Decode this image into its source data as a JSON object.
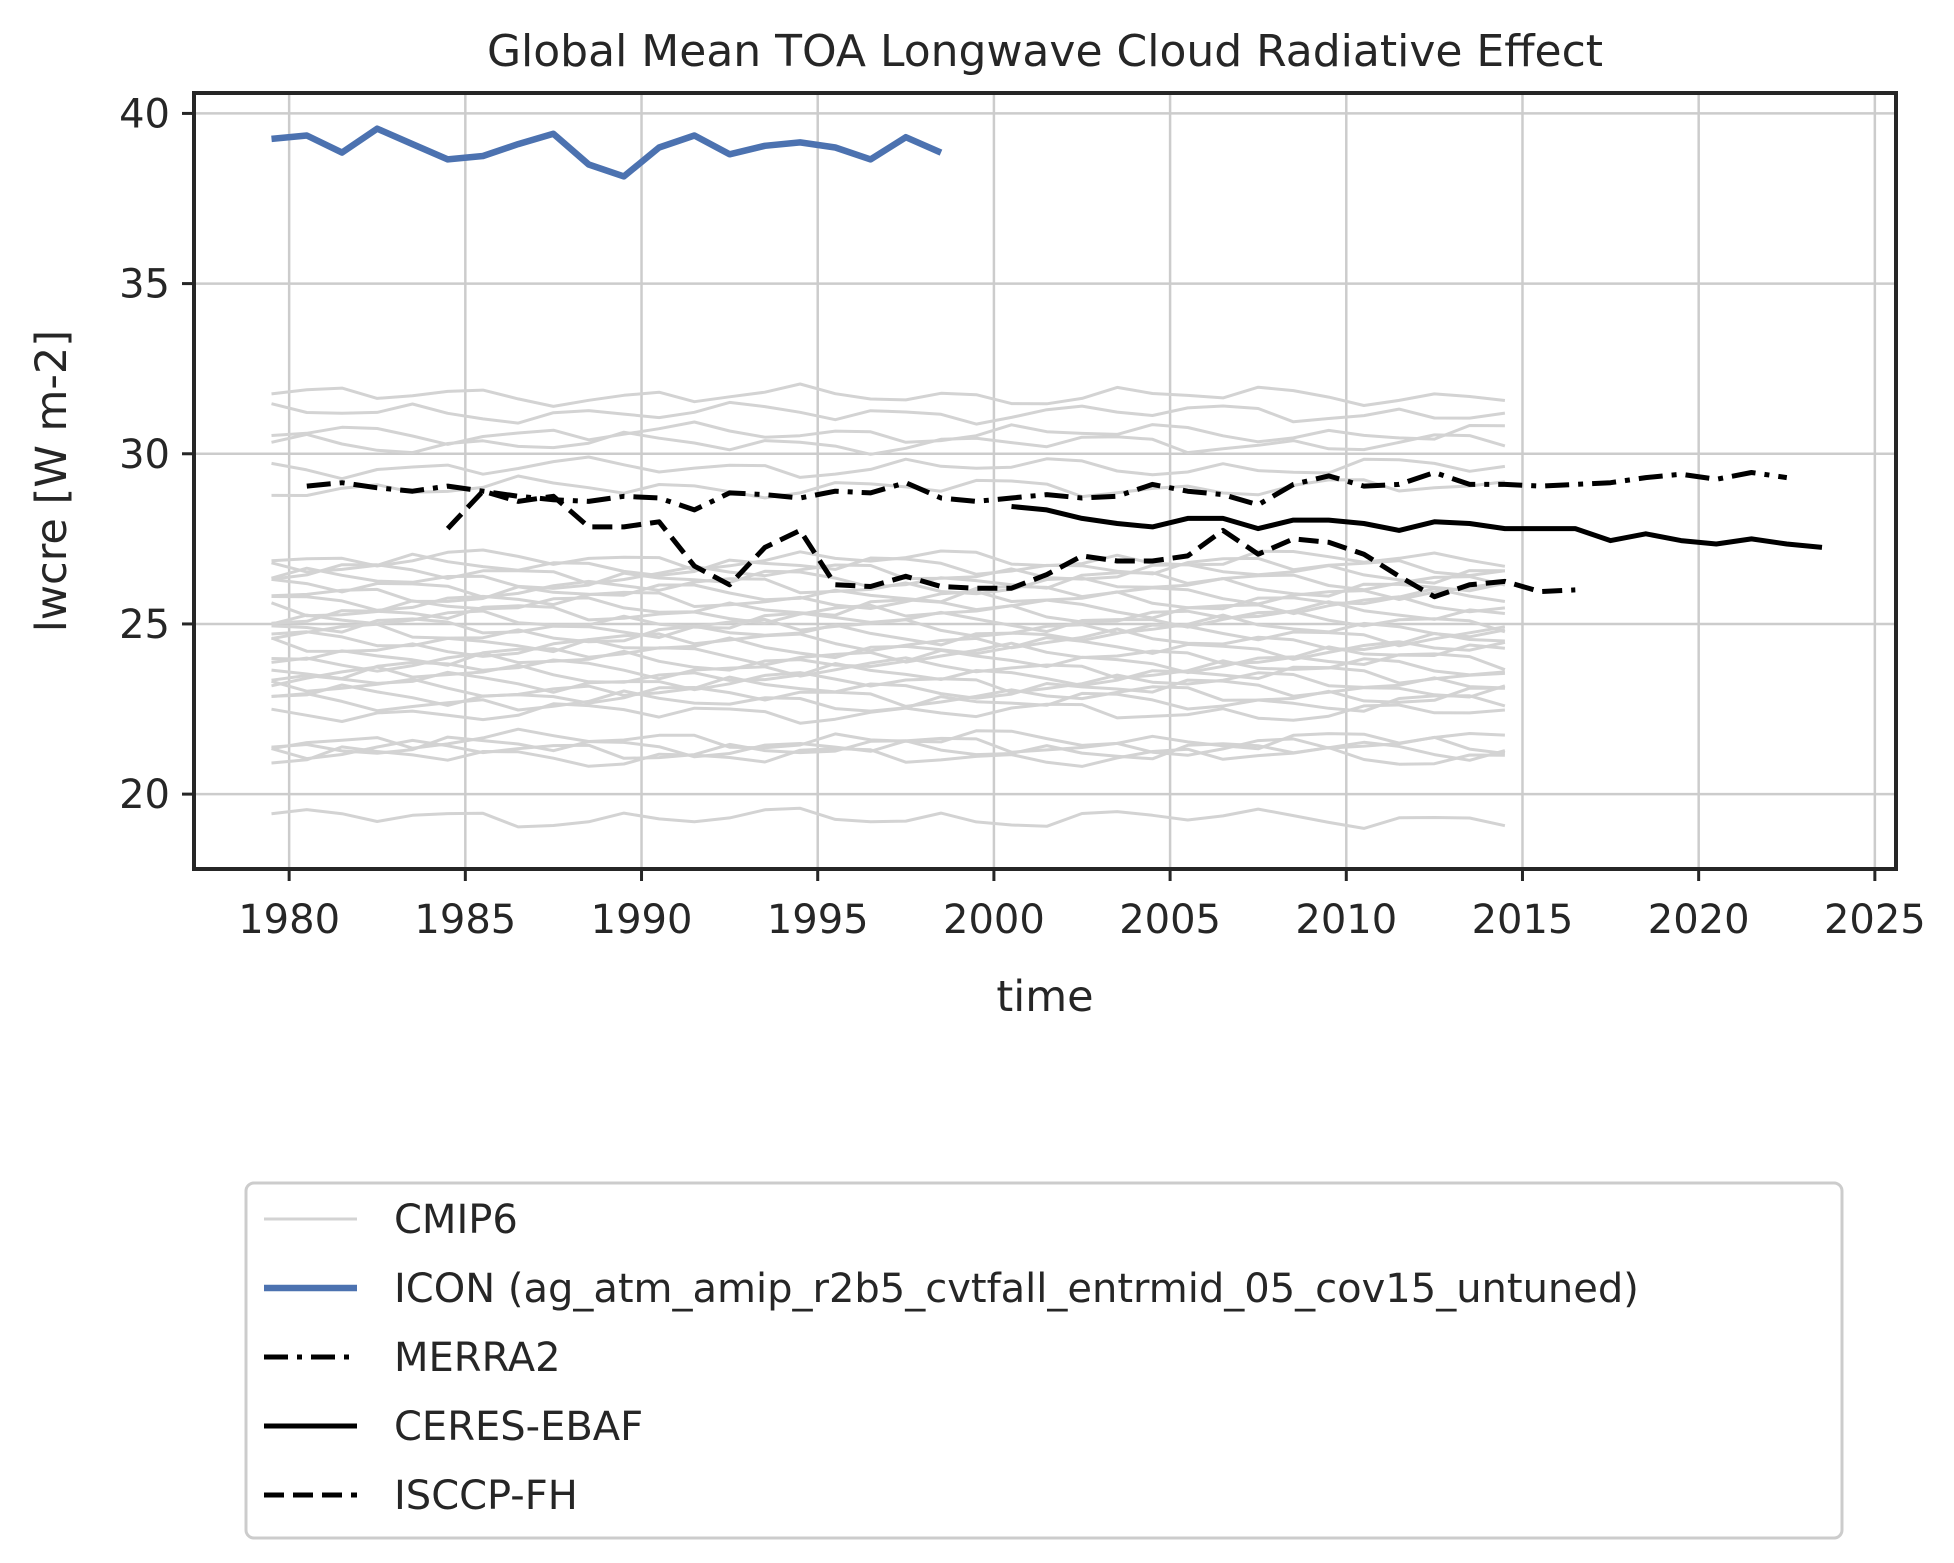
{
  "chart_data": {
    "type": "line",
    "title": "Global Mean TOA Longwave Cloud Radiative Effect",
    "xlabel": "time",
    "ylabel": "lwcre [W m-2]",
    "xlim": [
      1977.3,
      2025.6
    ],
    "ylim": [
      17.8,
      40.6
    ],
    "xticks": [
      "1980",
      "1985",
      "1990",
      "1995",
      "2000",
      "2005",
      "2010",
      "2015",
      "2020",
      "2025"
    ],
    "yticks": [
      "20",
      "25",
      "30",
      "35",
      "40"
    ],
    "grid": true,
    "legend_position": "below plot",
    "colors": {
      "cmip6": "#d3d3d3",
      "icon": "#4c72b0",
      "observations": "#000000",
      "grid": "#cccccc",
      "axes": "#262626"
    },
    "legend": [
      {
        "label": "CMIP6",
        "style": "thin-solid",
        "color": "#d3d3d3"
      },
      {
        "label": "ICON (ag_atm_amip_r2b5_cvtfall_entrmid_05_cov15_untuned)",
        "style": "thick-solid",
        "color": "#4c72b0"
      },
      {
        "label": "MERRA2",
        "style": "dashdot",
        "color": "#000000"
      },
      {
        "label": "CERES-EBAF",
        "style": "solid",
        "color": "#000000"
      },
      {
        "label": "ISCCP-FH",
        "style": "dashed",
        "color": "#000000"
      }
    ],
    "cmip6": {
      "name": "CMIP6",
      "x_start": 1979.5,
      "x_end": 2014.5,
      "model_levels": [
        31.7,
        31.2,
        30.6,
        30.3,
        29.6,
        29.0,
        26.9,
        26.7,
        26.5,
        26.3,
        26.1,
        25.9,
        25.7,
        25.5,
        25.3,
        25.1,
        24.9,
        24.7,
        24.5,
        24.3,
        24.1,
        23.9,
        23.7,
        23.5,
        23.3,
        23.1,
        22.9,
        22.7,
        22.4,
        21.6,
        21.4,
        21.3,
        21.1,
        19.3
      ],
      "note": "thin grey lines, one per model, annual means 1979.5-2014.5"
    },
    "series": [
      {
        "name": "ICON (ag_atm_amip_r2b5_cvtfall_entrmid_05_cov15_untuned)",
        "style": "thick-solid",
        "color": "#4c72b0",
        "x": [
          1979.5,
          1980.5,
          1981.5,
          1982.5,
          1983.5,
          1984.5,
          1985.5,
          1986.5,
          1987.5,
          1988.5,
          1989.5,
          1990.5,
          1991.5,
          1992.5,
          1993.5,
          1994.5,
          1995.5,
          1996.5,
          1997.5,
          1998.5
        ],
        "values": [
          39.25,
          39.35,
          38.85,
          39.55,
          39.1,
          38.65,
          38.75,
          39.1,
          39.4,
          38.5,
          38.15,
          39.0,
          39.35,
          38.8,
          39.05,
          39.15,
          39.0,
          38.65,
          39.3,
          38.85
        ]
      },
      {
        "name": "MERRA2",
        "style": "dashdot",
        "color": "#000000",
        "x": [
          1980.5,
          1981.5,
          1982.5,
          1983.5,
          1984.5,
          1985.5,
          1986.5,
          1987.5,
          1988.5,
          1989.5,
          1990.5,
          1991.5,
          1992.5,
          1993.5,
          1994.5,
          1995.5,
          1996.5,
          1997.5,
          1998.5,
          1999.5,
          2000.5,
          2001.5,
          2002.5,
          2003.5,
          2004.5,
          2005.5,
          2006.5,
          2007.5,
          2008.5,
          2009.5,
          2010.5,
          2011.5,
          2012.5,
          2013.5,
          2014.5,
          2015.5,
          2016.5,
          2017.5,
          2018.5,
          2019.5,
          2020.5,
          2021.5,
          2022.5
        ],
        "values": [
          29.05,
          29.15,
          29.0,
          28.9,
          29.05,
          28.9,
          28.75,
          28.65,
          28.6,
          28.75,
          28.7,
          28.35,
          28.85,
          28.8,
          28.7,
          28.9,
          28.85,
          29.15,
          28.7,
          28.6,
          28.7,
          28.8,
          28.7,
          28.75,
          29.1,
          28.9,
          28.8,
          28.5,
          29.1,
          29.35,
          29.05,
          29.1,
          29.45,
          29.1,
          29.1,
          29.05,
          29.1,
          29.15,
          29.3,
          29.4,
          29.25,
          29.45,
          29.3
        ]
      },
      {
        "name": "CERES-EBAF",
        "style": "solid",
        "color": "#000000",
        "x": [
          2000.5,
          2001.5,
          2002.5,
          2003.5,
          2004.5,
          2005.5,
          2006.5,
          2007.5,
          2008.5,
          2009.5,
          2010.5,
          2011.5,
          2012.5,
          2013.5,
          2014.5,
          2015.5,
          2016.5,
          2017.5,
          2018.5,
          2019.5,
          2020.5,
          2021.5,
          2022.5,
          2023.5
        ],
        "values": [
          28.45,
          28.35,
          28.1,
          27.95,
          27.85,
          28.1,
          28.1,
          27.8,
          28.05,
          28.05,
          27.95,
          27.75,
          28.0,
          27.95,
          27.8,
          27.8,
          27.8,
          27.45,
          27.65,
          27.45,
          27.35,
          27.5,
          27.35,
          27.25
        ]
      },
      {
        "name": "ISCCP-FH",
        "style": "dashed",
        "color": "#000000",
        "x": [
          1984.5,
          1985.5,
          1986.5,
          1987.5,
          1988.5,
          1989.5,
          1990.5,
          1991.5,
          1992.5,
          1993.5,
          1994.5,
          1995.5,
          1996.5,
          1997.5,
          1998.5,
          1999.5,
          2000.5,
          2001.5,
          2002.5,
          2003.5,
          2004.5,
          2005.5,
          2006.5,
          2007.5,
          2008.5,
          2009.5,
          2010.5,
          2011.5,
          2012.5,
          2013.5,
          2014.5,
          2015.5,
          2016.5
        ],
        "values": [
          27.8,
          28.9,
          28.6,
          28.75,
          27.85,
          27.85,
          28.0,
          26.7,
          26.15,
          27.25,
          27.75,
          26.15,
          26.1,
          26.4,
          26.1,
          26.05,
          26.05,
          26.45,
          27.0,
          26.85,
          26.85,
          27.0,
          27.75,
          27.05,
          27.5,
          27.4,
          27.05,
          26.4,
          25.8,
          26.15,
          26.25,
          25.95,
          26.0
        ]
      }
    ]
  }
}
